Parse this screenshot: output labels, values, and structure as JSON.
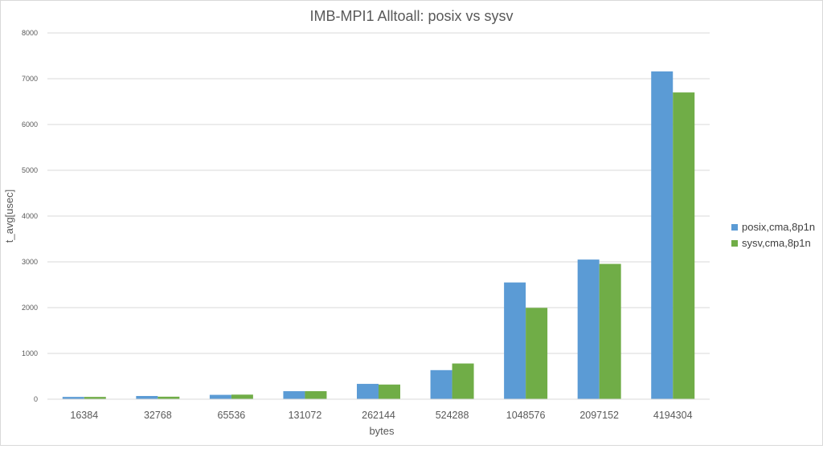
{
  "chart_data": {
    "type": "bar",
    "title": "IMB-MPI1 Alltoall: posix vs sysv",
    "xlabel": "bytes",
    "ylabel": "t_avg[usec]",
    "categories": [
      "16384",
      "32768",
      "65536",
      "131072",
      "262144",
      "524288",
      "1048576",
      "2097152",
      "4194304"
    ],
    "series": [
      {
        "name": "posix,cma,8p1n",
        "color": "#5b9bd5",
        "values": [
          50,
          70,
          95,
          175,
          335,
          635,
          2550,
          3050,
          7160
        ]
      },
      {
        "name": "sysv,cma,8p1n",
        "color": "#70ad47",
        "values": [
          50,
          55,
          100,
          175,
          320,
          780,
          1995,
          2955,
          6700
        ]
      }
    ],
    "ylim": [
      0,
      8000
    ],
    "yticks": [
      "0",
      "1000",
      "2000",
      "3000",
      "4000",
      "5000",
      "6000",
      "7000",
      "8000"
    ],
    "grid": true,
    "legend_position": "right"
  }
}
